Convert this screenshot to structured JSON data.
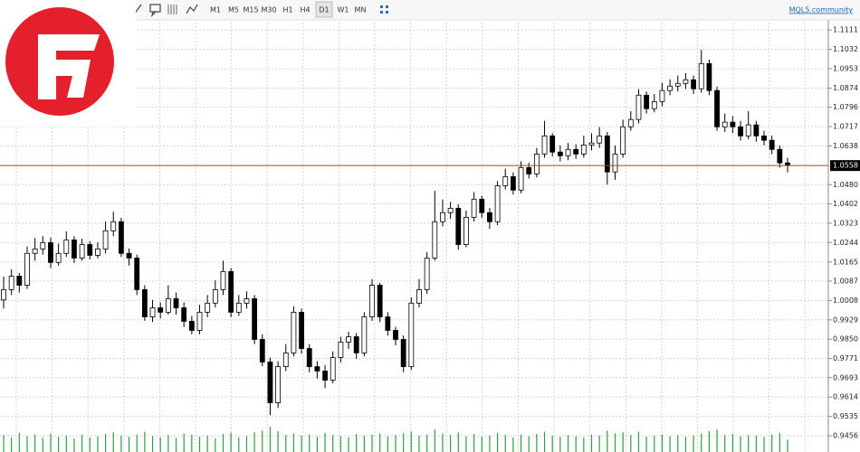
{
  "toolbar": {
    "timeframes": [
      "M1",
      "M5",
      "M15",
      "M30",
      "H1",
      "H4",
      "D1",
      "W1",
      "MN"
    ],
    "active_timeframe": "D1",
    "link": "MQL5.community"
  },
  "chart_data": {
    "type": "candlestick",
    "ylim": [
      0.939,
      1.1141
    ],
    "yticks": [
      1.1111,
      1.1032,
      1.0953,
      1.0874,
      1.0796,
      1.0717,
      1.0638,
      {
        "value": 1.048,
        "label": "1.0480"
      },
      1.0402,
      1.0323,
      1.0244,
      1.0165,
      1.0087,
      1.0008,
      0.9929,
      {
        "value": 0.985,
        "label": "0.9850"
      },
      0.9771,
      0.9693,
      0.9614,
      0.9535,
      0.9456
    ],
    "grid": true,
    "current_price": 1.0558,
    "current_price_color": "#c0392b",
    "up_color": "#ffffff",
    "down_color": "#000000",
    "volume_color": "#2e9e3e",
    "ohlc": [
      [
        1.001,
        1.0105,
        0.9975,
        1.0052
      ],
      [
        1.0052,
        1.0135,
        1.003,
        1.0107
      ],
      [
        1.0107,
        1.012,
        1.004,
        1.007
      ],
      [
        1.007,
        1.0228,
        1.0055,
        1.02
      ],
      [
        1.02,
        1.0262,
        1.017,
        1.0218
      ],
      [
        1.0218,
        1.027,
        1.0195,
        1.0244
      ],
      [
        1.0244,
        1.0265,
        1.014,
        1.0163
      ],
      [
        1.0163,
        1.024,
        1.015,
        1.02
      ],
      [
        1.02,
        1.029,
        1.0185,
        1.0255
      ],
      [
        1.0255,
        1.027,
        1.016,
        1.0181
      ],
      [
        1.0181,
        1.026,
        1.017,
        1.0236
      ],
      [
        1.0236,
        1.025,
        1.0175,
        1.0192
      ],
      [
        1.0192,
        1.0245,
        1.018,
        1.0218
      ],
      [
        1.0218,
        1.033,
        1.02,
        1.0292
      ],
      [
        1.0292,
        1.037,
        1.027,
        1.0329
      ],
      [
        1.0329,
        1.0345,
        1.0185,
        1.02
      ],
      [
        1.02,
        1.022,
        1.015,
        1.0181
      ],
      [
        1.0181,
        1.0195,
        1.003,
        1.0052
      ],
      [
        1.0052,
        1.007,
        0.9925,
        0.9941
      ],
      [
        0.9941,
        1.001,
        0.992,
        0.9978
      ],
      [
        0.9978,
        1.0,
        0.9935,
        0.996
      ],
      [
        0.996,
        1.007,
        0.995,
        1.0015
      ],
      [
        1.0015,
        1.004,
        0.995,
        0.9978
      ],
      [
        0.9978,
        1.0,
        0.99,
        0.9923
      ],
      [
        0.9923,
        0.9945,
        0.987,
        0.9886
      ],
      [
        0.9886,
        0.999,
        0.987,
        0.996
      ],
      [
        0.996,
        1.003,
        0.994,
        0.9997
      ],
      [
        0.9997,
        1.009,
        0.998,
        1.0052
      ],
      [
        1.0052,
        1.017,
        1.003,
        1.0126
      ],
      [
        1.0126,
        1.014,
        0.994,
        0.996
      ],
      [
        0.996,
        1.003,
        0.9945,
        0.9997
      ],
      [
        0.9997,
        1.0045,
        0.9975,
        1.0015
      ],
      [
        1.0015,
        1.003,
        0.983,
        0.9849
      ],
      [
        0.9849,
        0.987,
        0.974,
        0.9757
      ],
      [
        0.9757,
        0.9775,
        0.954,
        0.9591
      ],
      [
        0.9591,
        0.976,
        0.957,
        0.9738
      ],
      [
        0.9738,
        0.983,
        0.972,
        0.9794
      ],
      [
        0.9794,
        0.9985,
        0.978,
        0.996
      ],
      [
        0.996,
        0.9975,
        0.979,
        0.9812
      ],
      [
        0.9812,
        0.983,
        0.9715,
        0.9738
      ],
      [
        0.9738,
        0.976,
        0.969,
        0.972
      ],
      [
        0.972,
        0.9745,
        0.965,
        0.9683
      ],
      [
        0.9683,
        0.98,
        0.967,
        0.9775
      ],
      [
        0.9775,
        0.986,
        0.9755,
        0.9838
      ],
      [
        0.9838,
        0.988,
        0.981,
        0.986
      ],
      [
        0.986,
        0.9875,
        0.977,
        0.9794
      ],
      [
        0.9794,
        0.996,
        0.978,
        0.9941
      ],
      [
        0.9941,
        1.0095,
        0.9925,
        1.007
      ],
      [
        1.007,
        1.008,
        0.992,
        0.9941
      ],
      [
        0.9941,
        0.996,
        0.9865,
        0.9886
      ],
      [
        0.9886,
        0.99,
        0.9825,
        0.9849
      ],
      [
        0.9849,
        0.9865,
        0.9715,
        0.9738
      ],
      [
        0.9738,
        1.002,
        0.9725,
        0.9997
      ],
      [
        0.9997,
        1.0095,
        0.998,
        1.0052
      ],
      [
        1.0052,
        1.0205,
        1.0035,
        1.0181
      ],
      [
        1.0181,
        1.0455,
        1.017,
        1.0329
      ],
      [
        1.0329,
        1.042,
        1.031,
        1.0366
      ],
      [
        1.0366,
        1.041,
        1.034,
        1.0384
      ],
      [
        1.0384,
        1.04,
        1.0215,
        1.0236
      ],
      [
        1.0236,
        1.0375,
        1.0225,
        1.0347
      ],
      [
        1.0347,
        1.045,
        1.033,
        1.0421
      ],
      [
        1.0421,
        1.0435,
        1.0345,
        1.0366
      ],
      [
        1.0366,
        1.0385,
        1.03,
        1.0329
      ],
      [
        1.0329,
        1.0495,
        1.0315,
        1.0476
      ],
      [
        1.0476,
        1.0545,
        1.046,
        1.0513
      ],
      [
        1.0513,
        1.053,
        1.044,
        1.0458
      ],
      [
        1.0458,
        1.0575,
        1.0445,
        1.055
      ],
      [
        1.055,
        1.057,
        1.0505,
        1.0524
      ],
      [
        1.0524,
        1.063,
        1.051,
        1.0605
      ],
      [
        1.0605,
        1.074,
        1.059,
        1.0679
      ],
      [
        1.0679,
        1.069,
        1.0595,
        1.0613
      ],
      [
        1.0613,
        1.064,
        1.0575,
        1.0598
      ],
      [
        1.0598,
        1.065,
        1.058,
        1.0624
      ],
      [
        1.0624,
        1.0645,
        1.0585,
        1.0605
      ],
      [
        1.0605,
        1.068,
        1.059,
        1.0642
      ],
      [
        1.0642,
        1.069,
        1.062,
        1.065
      ],
      [
        1.065,
        1.0715,
        1.063,
        1.0679
      ],
      [
        1.0679,
        1.0695,
        1.048,
        1.0532
      ],
      [
        1.0532,
        1.064,
        1.05,
        1.0605
      ],
      [
        1.0605,
        1.0745,
        1.059,
        1.0716
      ],
      [
        1.0716,
        1.078,
        1.07,
        1.0746
      ],
      [
        1.0746,
        1.087,
        1.073,
        1.0845
      ],
      [
        1.0845,
        1.086,
        1.077,
        1.079
      ],
      [
        1.079,
        1.085,
        1.0775,
        1.0819
      ],
      [
        1.0819,
        1.0895,
        1.08,
        1.0864
      ],
      [
        1.0864,
        1.091,
        1.0845,
        1.0882
      ],
      [
        1.0882,
        1.0925,
        1.086,
        1.0893
      ],
      [
        1.0893,
        1.0935,
        1.087,
        1.0908
      ],
      [
        1.0908,
        1.0925,
        1.085,
        1.0871
      ],
      [
        1.0871,
        1.103,
        1.0855,
        1.0974
      ],
      [
        1.0974,
        1.099,
        1.0845,
        1.0864
      ],
      [
        1.0864,
        1.088,
        1.07,
        1.0716
      ],
      [
        1.0716,
        1.077,
        1.0695,
        1.0735
      ],
      [
        1.0735,
        1.076,
        1.069,
        1.0716
      ],
      [
        1.0716,
        1.074,
        1.066,
        1.0679
      ],
      [
        1.0679,
        1.078,
        1.0665,
        1.0724
      ],
      [
        1.0724,
        1.074,
        1.0655,
        1.0679
      ],
      [
        1.0679,
        1.07,
        1.064,
        1.0661
      ],
      [
        1.0661,
        1.068,
        1.0605,
        1.0624
      ],
      [
        1.0624,
        1.064,
        1.055,
        1.0569
      ],
      [
        1.0569,
        1.059,
        1.053,
        1.0558
      ]
    ],
    "volumes": [
      30,
      26,
      34,
      28,
      31,
      25,
      33,
      27,
      29,
      24,
      30,
      26,
      28,
      32,
      35,
      29,
      27,
      31,
      36,
      28,
      26,
      30,
      25,
      33,
      31,
      27,
      29,
      24,
      32,
      34,
      26,
      28,
      35,
      38,
      45,
      37,
      30,
      33,
      29,
      31,
      27,
      34,
      30,
      28,
      26,
      32,
      29,
      31,
      33,
      28,
      30,
      34,
      36,
      29,
      31,
      40,
      33,
      30,
      35,
      28,
      32,
      27,
      29,
      34,
      30,
      26,
      31,
      28,
      32,
      36,
      29,
      27,
      30,
      28,
      26,
      31,
      29,
      38,
      33,
      35,
      30,
      36,
      27,
      29,
      31,
      28,
      30,
      27,
      29,
      33,
      37,
      40,
      30,
      32,
      28,
      30,
      29,
      27,
      31,
      34,
      22
    ]
  }
}
